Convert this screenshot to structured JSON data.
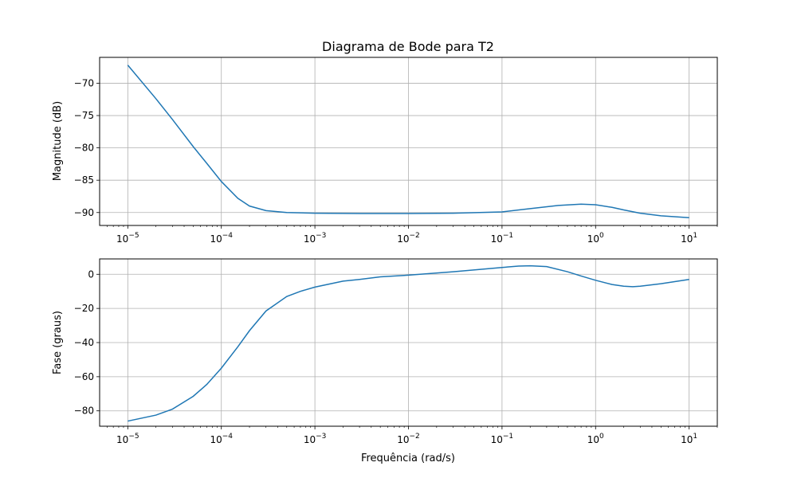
{
  "chart_data": [
    {
      "type": "line",
      "title": "Diagrama de Bode para T2",
      "xlabel": "",
      "ylabel": "Magnitude (dB)",
      "xscale": "log",
      "xlim": [
        5e-06,
        20
      ],
      "ylim": [
        -92,
        -66
      ],
      "grid": true,
      "x_ticks": [
        1e-05,
        0.0001,
        0.001,
        0.01,
        0.1,
        1,
        10
      ],
      "x_tick_labels": [
        {
          "base": "10",
          "exp": "−5"
        },
        {
          "base": "10",
          "exp": "−4"
        },
        {
          "base": "10",
          "exp": "−3"
        },
        {
          "base": "10",
          "exp": "−2"
        },
        {
          "base": "10",
          "exp": "−1"
        },
        {
          "base": "10",
          "exp": "0"
        },
        {
          "base": "10",
          "exp": "1"
        }
      ],
      "y_ticks": [
        -90,
        -85,
        -80,
        -75,
        -70
      ],
      "y_tick_labels": [
        "−90",
        "−85",
        "−80",
        "−75",
        "−70"
      ],
      "series": [
        {
          "color": "#1f77b4",
          "x": [
            1e-05,
            2e-05,
            3e-05,
            5e-05,
            7e-05,
            0.0001,
            0.00015,
            0.0002,
            0.0003,
            0.0005,
            0.001,
            0.003,
            0.01,
            0.03,
            0.1,
            0.2,
            0.4,
            0.7,
            1,
            1.5,
            2,
            3,
            5,
            10
          ],
          "y": [
            -67.2,
            -72.4,
            -75.6,
            -79.8,
            -82.4,
            -85.2,
            -87.8,
            -89.0,
            -89.7,
            -90.0,
            -90.1,
            -90.15,
            -90.15,
            -90.1,
            -89.9,
            -89.4,
            -88.9,
            -88.7,
            -88.8,
            -89.2,
            -89.6,
            -90.1,
            -90.5,
            -90.8
          ]
        }
      ]
    },
    {
      "type": "line",
      "title": "",
      "xlabel": "Frequência (rad/s)",
      "ylabel": "Fase (graus)",
      "xscale": "log",
      "xlim": [
        5e-06,
        20
      ],
      "ylim": [
        -89,
        9
      ],
      "grid": true,
      "x_ticks": [
        1e-05,
        0.0001,
        0.001,
        0.01,
        0.1,
        1,
        10
      ],
      "x_tick_labels": [
        {
          "base": "10",
          "exp": "−5"
        },
        {
          "base": "10",
          "exp": "−4"
        },
        {
          "base": "10",
          "exp": "−3"
        },
        {
          "base": "10",
          "exp": "−2"
        },
        {
          "base": "10",
          "exp": "−1"
        },
        {
          "base": "10",
          "exp": "0"
        },
        {
          "base": "10",
          "exp": "1"
        }
      ],
      "y_ticks": [
        -80,
        -60,
        -40,
        -20,
        0
      ],
      "y_tick_labels": [
        "−80",
        "−60",
        "−40",
        "−20",
        "0"
      ],
      "series": [
        {
          "color": "#1f77b4",
          "x": [
            1e-05,
            2e-05,
            3e-05,
            5e-05,
            7e-05,
            0.0001,
            0.00015,
            0.0002,
            0.0003,
            0.0005,
            0.0007,
            0.001,
            0.002,
            0.003,
            0.005,
            0.01,
            0.03,
            0.1,
            0.15,
            0.2,
            0.3,
            0.5,
            0.7,
            1,
            1.5,
            2,
            2.5,
            3,
            5,
            10
          ],
          "y": [
            -86,
            -82.5,
            -79,
            -71.5,
            -64.5,
            -55,
            -42.5,
            -33,
            -21.5,
            -13,
            -10,
            -7.5,
            -4,
            -3,
            -1.5,
            -0.5,
            1.5,
            4,
            4.8,
            5,
            4.5,
            1.5,
            -1,
            -3.5,
            -6,
            -7,
            -7.3,
            -7,
            -5.5,
            -3
          ]
        }
      ]
    }
  ]
}
